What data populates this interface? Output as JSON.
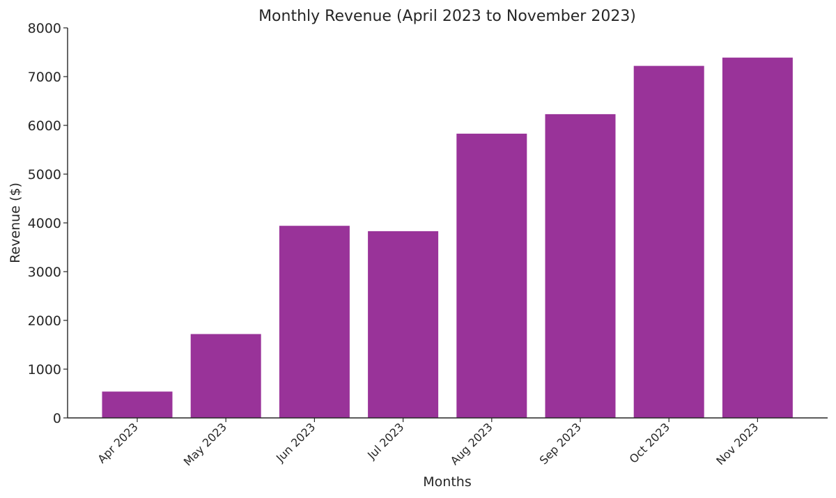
{
  "chart_data": {
    "type": "bar",
    "title": "Monthly Revenue (April 2023 to November 2023)",
    "xlabel": "Months",
    "ylabel": "Revenue ($)",
    "categories": [
      "Apr 2023",
      "May 2023",
      "Jun 2023",
      "Jul 2023",
      "Aug 2023",
      "Sep 2023",
      "Oct 2023",
      "Nov 2023"
    ],
    "values": [
      540,
      1720,
      3940,
      3830,
      5830,
      6230,
      7220,
      7390
    ],
    "ylim": [
      0,
      8000
    ],
    "yticks": [
      0,
      1000,
      2000,
      3000,
      4000,
      5000,
      6000,
      7000,
      8000
    ],
    "bar_color": "#993399",
    "grid": false,
    "legend": "none"
  }
}
